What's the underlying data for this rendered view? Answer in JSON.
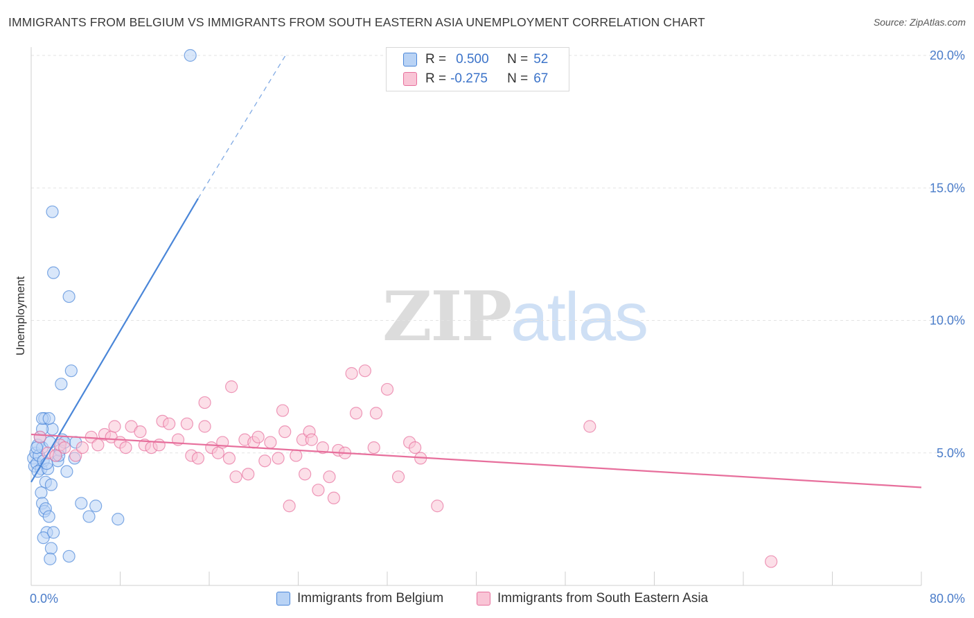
{
  "chart_data": {
    "type": "scatter",
    "title": "IMMIGRANTS FROM BELGIUM VS IMMIGRANTS FROM SOUTH EASTERN ASIA UNEMPLOYMENT CORRELATION CHART",
    "source": "Source: ZipAtlas.com",
    "ylabel": "Unemployment",
    "xlim": [
      0,
      80
    ],
    "ylim": [
      0,
      21
    ],
    "x_tick_labels": [
      "0.0%",
      "80.0%"
    ],
    "y_ticks": [
      5,
      10,
      15,
      20
    ],
    "y_tick_labels": [
      "5.0%",
      "10.0%",
      "15.0%",
      "20.0%"
    ],
    "watermark": {
      "zip": "ZIP",
      "atlas": "atlas"
    },
    "legend": {
      "r_label": "R =",
      "n_label": "N =",
      "entries": [
        {
          "r": "0.500",
          "n": "52"
        },
        {
          "r": "-0.275",
          "n": "67"
        }
      ]
    },
    "series": [
      {
        "name": "Immigrants from Belgium",
        "color": "#4a86d8",
        "fill": "#b9d3f5",
        "trend": {
          "x": [
            0,
            15
          ],
          "y": [
            3.9,
            14.6
          ],
          "dashed_to": [
            23,
            20.1
          ]
        },
        "points": [
          [
            0.2,
            4.8
          ],
          [
            0.3,
            4.5
          ],
          [
            0.4,
            5.0
          ],
          [
            0.5,
            4.6
          ],
          [
            0.6,
            5.3
          ],
          [
            0.7,
            4.9
          ],
          [
            0.8,
            5.6
          ],
          [
            0.9,
            4.4
          ],
          [
            1.0,
            5.2
          ],
          [
            1.1,
            4.7
          ],
          [
            1.2,
            6.3
          ],
          [
            0.5,
            5.2
          ],
          [
            0.6,
            4.3
          ],
          [
            1.3,
            3.9
          ],
          [
            0.9,
            3.5
          ],
          [
            1.0,
            3.1
          ],
          [
            1.2,
            2.8
          ],
          [
            1.4,
            2.0
          ],
          [
            1.1,
            1.8
          ],
          [
            1.3,
            2.9
          ],
          [
            1.6,
            2.6
          ],
          [
            1.8,
            1.4
          ],
          [
            1.7,
            1.0
          ],
          [
            2.0,
            2.0
          ],
          [
            1.8,
            3.8
          ],
          [
            1.5,
            4.4
          ],
          [
            1.9,
            5.9
          ],
          [
            1.0,
            5.9
          ],
          [
            1.0,
            6.3
          ],
          [
            1.6,
            6.3
          ],
          [
            2.2,
            4.9
          ],
          [
            2.4,
            4.7
          ],
          [
            2.6,
            5.1
          ],
          [
            2.8,
            5.5
          ],
          [
            3.0,
            5.4
          ],
          [
            3.2,
            4.3
          ],
          [
            1.4,
            4.6
          ],
          [
            1.7,
            5.4
          ],
          [
            2.5,
            4.9
          ],
          [
            3.6,
            8.1
          ],
          [
            2.0,
            11.8
          ],
          [
            1.9,
            14.1
          ],
          [
            3.4,
            10.9
          ],
          [
            2.7,
            7.6
          ],
          [
            4.0,
            5.4
          ],
          [
            4.5,
            3.1
          ],
          [
            5.2,
            2.6
          ],
          [
            3.9,
            4.8
          ],
          [
            5.8,
            3.0
          ],
          [
            7.8,
            2.5
          ],
          [
            3.4,
            1.1
          ],
          [
            14.3,
            20.0
          ]
        ]
      },
      {
        "name": "Immigrants from South Eastern Asia",
        "color": "#e76f9c",
        "fill": "#f9c5d6",
        "trend": {
          "x": [
            0,
            80
          ],
          "y": [
            5.7,
            3.7
          ]
        },
        "points": [
          [
            0.8,
            5.6
          ],
          [
            1.5,
            5.0
          ],
          [
            2.2,
            4.9
          ],
          [
            2.6,
            5.3
          ],
          [
            3.0,
            5.2
          ],
          [
            4.0,
            4.9
          ],
          [
            4.6,
            5.2
          ],
          [
            5.4,
            5.6
          ],
          [
            6.0,
            5.3
          ],
          [
            6.6,
            5.7
          ],
          [
            7.2,
            5.6
          ],
          [
            7.5,
            6.0
          ],
          [
            8.0,
            5.4
          ],
          [
            8.5,
            5.2
          ],
          [
            9.0,
            6.0
          ],
          [
            9.8,
            5.8
          ],
          [
            10.2,
            5.3
          ],
          [
            10.8,
            5.2
          ],
          [
            11.5,
            5.3
          ],
          [
            11.8,
            6.2
          ],
          [
            12.4,
            6.1
          ],
          [
            13.2,
            5.5
          ],
          [
            14.0,
            6.1
          ],
          [
            14.4,
            4.9
          ],
          [
            15.0,
            4.8
          ],
          [
            15.6,
            6.0
          ],
          [
            15.6,
            6.9
          ],
          [
            16.2,
            5.2
          ],
          [
            16.8,
            5.0
          ],
          [
            17.2,
            5.4
          ],
          [
            17.8,
            4.8
          ],
          [
            18.0,
            7.5
          ],
          [
            18.4,
            4.1
          ],
          [
            19.2,
            5.5
          ],
          [
            19.5,
            4.2
          ],
          [
            20.0,
            5.4
          ],
          [
            20.4,
            5.6
          ],
          [
            21.0,
            4.7
          ],
          [
            21.5,
            5.4
          ],
          [
            22.2,
            4.8
          ],
          [
            22.6,
            6.6
          ],
          [
            22.8,
            5.8
          ],
          [
            23.2,
            3.0
          ],
          [
            23.8,
            4.9
          ],
          [
            24.4,
            5.5
          ],
          [
            24.6,
            4.2
          ],
          [
            25.0,
            5.8
          ],
          [
            25.2,
            5.5
          ],
          [
            25.8,
            3.6
          ],
          [
            26.2,
            5.2
          ],
          [
            26.8,
            4.1
          ],
          [
            27.2,
            3.3
          ],
          [
            27.6,
            5.1
          ],
          [
            28.2,
            5.0
          ],
          [
            28.8,
            8.0
          ],
          [
            29.2,
            6.5
          ],
          [
            30.0,
            8.1
          ],
          [
            30.8,
            5.2
          ],
          [
            31.0,
            6.5
          ],
          [
            32.0,
            7.4
          ],
          [
            33.0,
            4.1
          ],
          [
            34.0,
            5.4
          ],
          [
            34.5,
            5.2
          ],
          [
            35.0,
            4.8
          ],
          [
            36.5,
            3.0
          ],
          [
            50.2,
            6.0
          ],
          [
            66.5,
            0.9
          ]
        ]
      }
    ]
  }
}
